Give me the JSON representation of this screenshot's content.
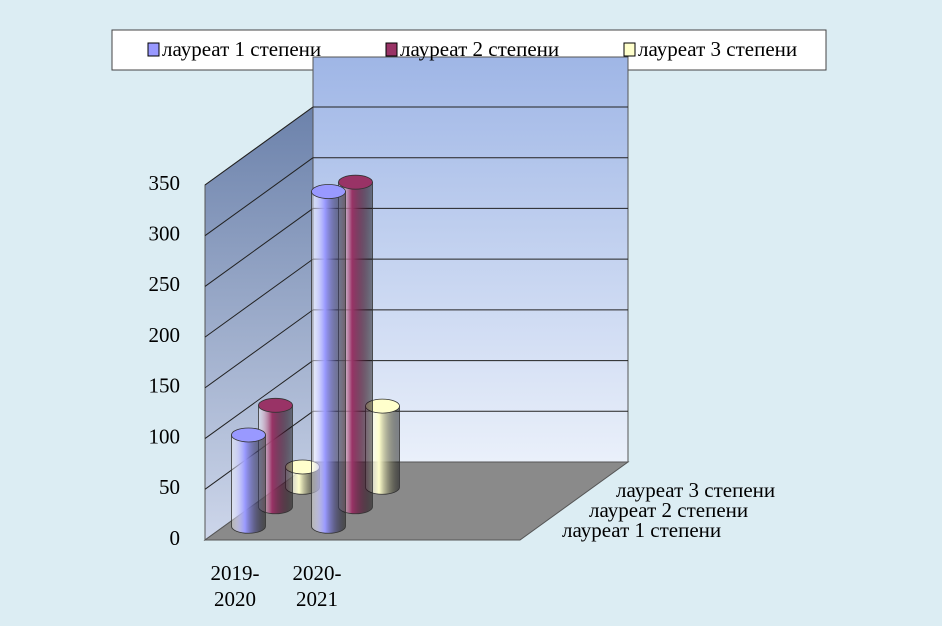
{
  "chart_data": {
    "type": "bar3d",
    "categories": [
      "2019-2020",
      "2020-2021"
    ],
    "series": [
      {
        "name": "лауреат 1 степени",
        "color": "#9999ff",
        "values": [
          90,
          330
        ]
      },
      {
        "name": "лауреат 2 степени",
        "color": "#993366",
        "values": [
          100,
          320
        ]
      },
      {
        "name": "лауреат 3 степени",
        "color": "#ffffcc",
        "values": [
          20,
          80
        ]
      }
    ],
    "ylim": [
      0,
      350
    ],
    "yticks": [
      0,
      50,
      100,
      150,
      200,
      250,
      300,
      350
    ],
    "grid": true,
    "legend": "top"
  }
}
